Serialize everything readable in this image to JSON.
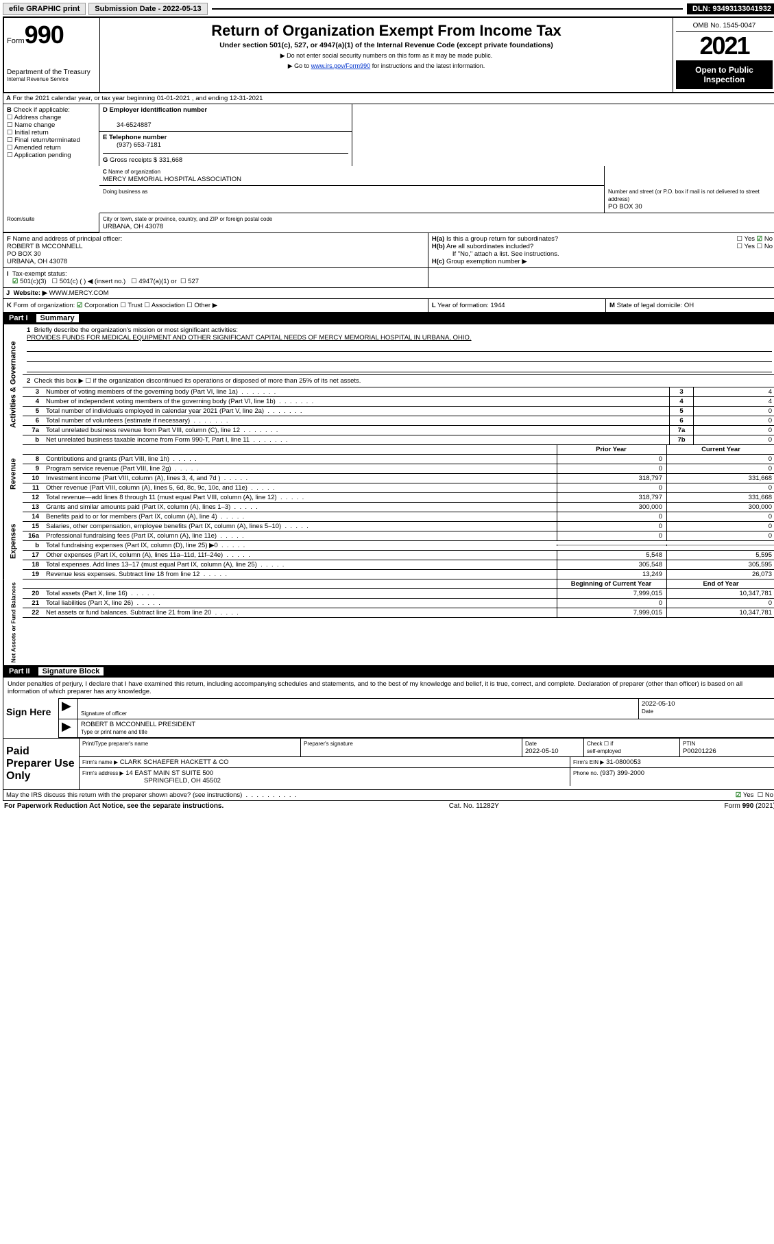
{
  "topbar": {
    "efile": "efile GRAPHIC print",
    "subdate_label": "Submission Date - 2022-05-13",
    "dln": "DLN: 93493133041932"
  },
  "header": {
    "form_word": "Form",
    "form_num": "990",
    "dept": "Department of the Treasury",
    "irs": "Internal Revenue Service",
    "title": "Return of Organization Exempt From Income Tax",
    "sub": "Under section 501(c), 527, or 4947(a)(1) of the Internal Revenue Code (except private foundations)",
    "ssn": "Do not enter social security numbers on this form as it may be made public.",
    "goto1": "Go to ",
    "goto_link": "www.irs.gov/Form990",
    "goto2": " for instructions and the latest information.",
    "omb": "OMB No. 1545-0047",
    "year": "2021",
    "inspect1": "Open to Public",
    "inspect2": "Inspection"
  },
  "lineA": "For the 2021 calendar year, or tax year beginning 01-01-2021    , and ending 12-31-2021",
  "B": {
    "hdr": "Check if applicable:",
    "items": [
      "Address change",
      "Name change",
      "Initial return",
      "Final return/terminated",
      "Amended return",
      "Application pending"
    ]
  },
  "C": {
    "label": "Name of organization",
    "org": "MERCY MEMORIAL HOSPITAL ASSOCIATION",
    "dba_label": "Doing business as",
    "addr_label": "Number and street (or P.O. box if mail is not delivered to street address)",
    "room": "Room/suite",
    "addr": "PO BOX 30",
    "city_label": "City or town, state or province, country, and ZIP or foreign postal code",
    "city": "URBANA, OH  43078"
  },
  "D": {
    "label": "Employer identification number",
    "val": "34-6524887"
  },
  "E": {
    "label": "Telephone number",
    "val": "(937) 653-7181"
  },
  "G": {
    "label": "Gross receipts $",
    "val": "331,668"
  },
  "F": {
    "label": "Name and address of principal officer:",
    "name": "ROBERT B MCCONNELL",
    "addr1": "PO BOX 30",
    "addr2": "URBANA, OH  43078"
  },
  "H": {
    "a": "Is this a group return for subordinates?",
    "a_ans": "No",
    "b": "Are all subordinates included?",
    "b_note": "If \"No,\" attach a list. See instructions.",
    "c": "Group exemption number ▶"
  },
  "I": {
    "label": "Tax-exempt status:",
    "chk": "501(c)(3)"
  },
  "J": {
    "label": "Website: ▶",
    "val": "WWW.MERCY.COM"
  },
  "K": {
    "label": "Form of organization:",
    "corp": "Corporation",
    "other": [
      "Trust",
      "Association",
      "Other ▶"
    ]
  },
  "L": {
    "label": "Year of formation:",
    "val": "1944"
  },
  "M": {
    "label": "State of legal domicile:",
    "val": "OH"
  },
  "partI": {
    "hdr": "Part I",
    "title": "Summary",
    "l1": "Briefly describe the organization's mission or most significant activities:",
    "mission": "PROVIDES FUNDS FOR MEDICAL EQUIPMENT AND OTHER SIGNIFICANT CAPITAL NEEDS OF MERCY MEMORIAL HOSPITAL IN URBANA, OHIO.",
    "l2": "Check this box ▶ ☐  if the organization discontinued its operations or disposed of more than 25% of its net assets.",
    "lines_gov": [
      {
        "n": "3",
        "t": "Number of voting members of the governing body (Part VI, line 1a)",
        "box": "3",
        "v": "4"
      },
      {
        "n": "4",
        "t": "Number of independent voting members of the governing body (Part VI, line 1b)",
        "box": "4",
        "v": "4"
      },
      {
        "n": "5",
        "t": "Total number of individuals employed in calendar year 2021 (Part V, line 2a)",
        "box": "5",
        "v": "0"
      },
      {
        "n": "6",
        "t": "Total number of volunteers (estimate if necessary)",
        "box": "6",
        "v": "0"
      },
      {
        "n": "7a",
        "t": "Total unrelated business revenue from Part VIII, column (C), line 12",
        "box": "7a",
        "v": "0"
      },
      {
        "n": "b",
        "t": "Net unrelated business taxable income from Form 990-T, Part I, line 11",
        "box": "7b",
        "v": "0"
      }
    ],
    "col_hdr": {
      "prior": "Prior Year",
      "current": "Current Year"
    },
    "revenue": [
      {
        "n": "8",
        "t": "Contributions and grants (Part VIII, line 1h)",
        "p": "0",
        "c": "0"
      },
      {
        "n": "9",
        "t": "Program service revenue (Part VIII, line 2g)",
        "p": "0",
        "c": "0"
      },
      {
        "n": "10",
        "t": "Investment income (Part VIII, column (A), lines 3, 4, and 7d )",
        "p": "318,797",
        "c": "331,668"
      },
      {
        "n": "11",
        "t": "Other revenue (Part VIII, column (A), lines 5, 6d, 8c, 9c, 10c, and 11e)",
        "p": "0",
        "c": "0"
      },
      {
        "n": "12",
        "t": "Total revenue—add lines 8 through 11 (must equal Part VIII, column (A), line 12)",
        "p": "318,797",
        "c": "331,668"
      }
    ],
    "expenses": [
      {
        "n": "13",
        "t": "Grants and similar amounts paid (Part IX, column (A), lines 1–3)",
        "p": "300,000",
        "c": "300,000"
      },
      {
        "n": "14",
        "t": "Benefits paid to or for members (Part IX, column (A), line 4)",
        "p": "0",
        "c": "0"
      },
      {
        "n": "15",
        "t": "Salaries, other compensation, employee benefits (Part IX, column (A), lines 5–10)",
        "p": "0",
        "c": "0"
      },
      {
        "n": "16a",
        "t": "Professional fundraising fees (Part IX, column (A), line 11e)",
        "p": "0",
        "c": "0"
      },
      {
        "n": "b",
        "t": "Total fundraising expenses (Part IX, column (D), line 25) ▶0",
        "p": "",
        "c": "",
        "shade": true
      },
      {
        "n": "17",
        "t": "Other expenses (Part IX, column (A), lines 11a–11d, 11f–24e)",
        "p": "5,548",
        "c": "5,595"
      },
      {
        "n": "18",
        "t": "Total expenses. Add lines 13–17 (must equal Part IX, column (A), line 25)",
        "p": "305,548",
        "c": "305,595"
      },
      {
        "n": "19",
        "t": "Revenue less expenses. Subtract line 18 from line 12",
        "p": "13,249",
        "c": "26,073"
      }
    ],
    "na_hdr": {
      "b": "Beginning of Current Year",
      "e": "End of Year"
    },
    "netassets": [
      {
        "n": "20",
        "t": "Total assets (Part X, line 16)",
        "p": "7,999,015",
        "c": "10,347,781"
      },
      {
        "n": "21",
        "t": "Total liabilities (Part X, line 26)",
        "p": "0",
        "c": "0"
      },
      {
        "n": "22",
        "t": "Net assets or fund balances. Subtract line 21 from line 20",
        "p": "7,999,015",
        "c": "10,347,781"
      }
    ]
  },
  "partII": {
    "hdr": "Part II",
    "title": "Signature Block",
    "decl": "Under penalties of perjury, I declare that I have examined this return, including accompanying schedules and statements, and to the best of my knowledge and belief, it is true, correct, and complete. Declaration of preparer (other than officer) is based on all information of which preparer has any knowledge.",
    "sign_here": "Sign Here",
    "sig_of": "Signature of officer",
    "date_label": "Date",
    "date": "2022-05-10",
    "name": "ROBERT B MCCONNELL  PRESIDENT",
    "name_label": "Type or print name and title",
    "paid": "Paid Preparer Use Only",
    "h1": "Print/Type preparer's name",
    "h2": "Preparer's signature",
    "h3": "Date",
    "h3v": "2022-05-10",
    "h4a": "Check ☐ if",
    "h4b": "self-employed",
    "h5": "PTIN",
    "h5v": "P00201226",
    "firm_label": "Firm's name   ▶",
    "firm": "CLARK SCHAEFER HACKETT & CO",
    "ein_label": "Firm's EIN ▶",
    "ein": "31-0800053",
    "addr_label": "Firm's address ▶",
    "addr1": "14 EAST MAIN ST SUITE 500",
    "addr2": "SPRINGFIELD, OH  45502",
    "phone_label": "Phone no.",
    "phone": "(937) 399-2000",
    "discuss": "May the IRS discuss this return with the preparer shown above? (see instructions)",
    "discuss_ans": "Yes"
  },
  "footer": {
    "pra": "For Paperwork Reduction Act Notice, see the separate instructions.",
    "cat": "Cat. No. 11282Y",
    "form": "Form 990 (2021)"
  },
  "vtabs": {
    "gov": "Activities & Governance",
    "rev": "Revenue",
    "exp": "Expenses",
    "na": "Net Assets or Fund Balances"
  }
}
